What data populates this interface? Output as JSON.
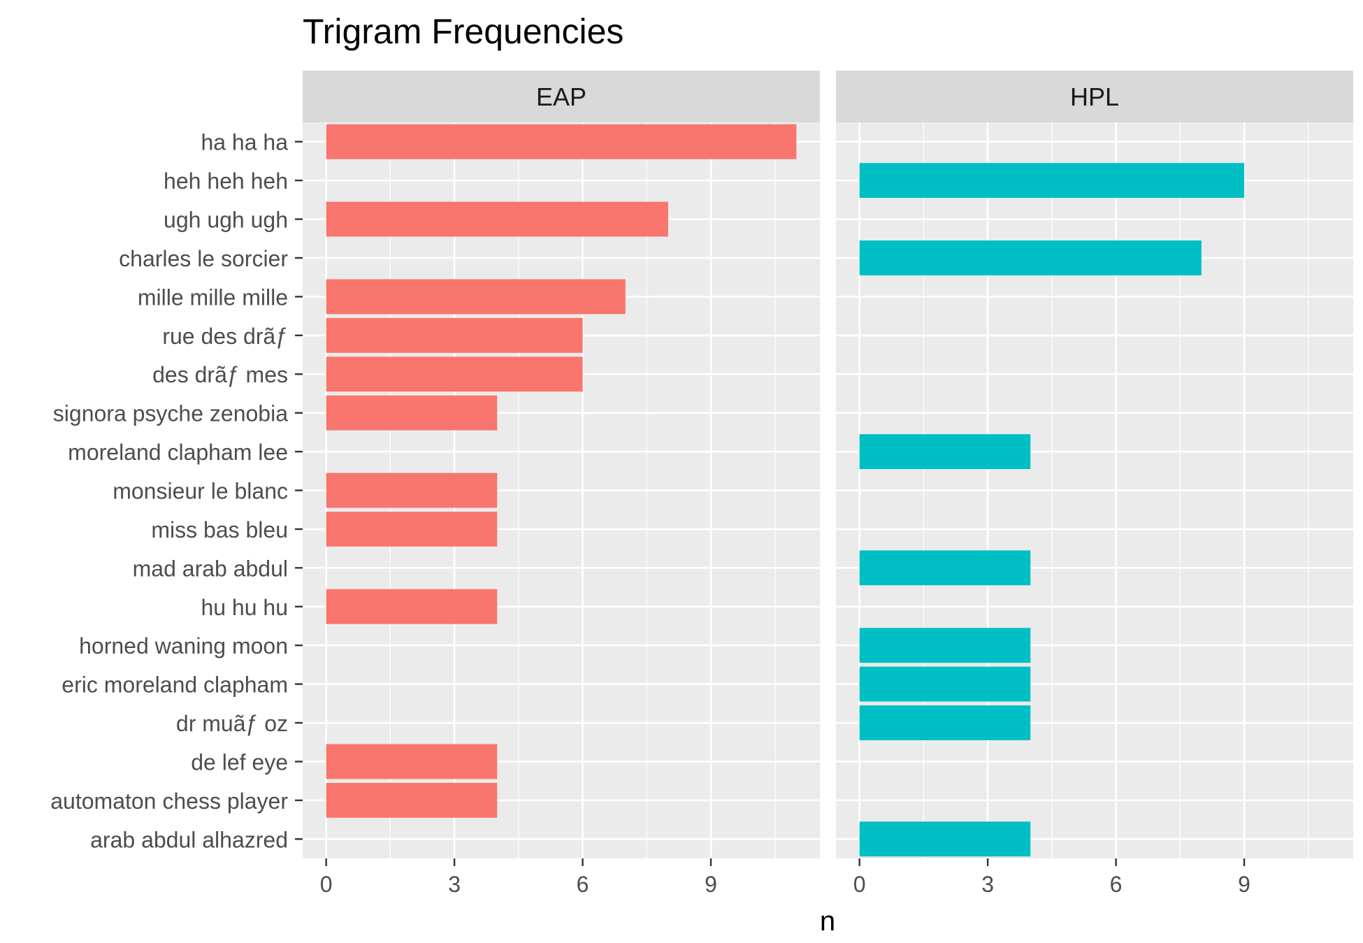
{
  "chart_data": {
    "type": "bar",
    "orientation": "horizontal",
    "title": "Trigram Frequencies",
    "xlabel": "n",
    "ylabel": "",
    "xlim": [
      -0.55,
      11.55
    ],
    "x_ticks": [
      0,
      3,
      6,
      9
    ],
    "grid": true,
    "legend": "none",
    "categories": [
      "ha ha ha",
      "heh heh heh",
      "ugh ugh ugh",
      "charles le sorcier",
      "mille mille mille",
      "rue des drãƒ",
      "des drãƒ mes",
      "signora psyche zenobia",
      "moreland clapham lee",
      "monsieur le blanc",
      "miss bas bleu",
      "mad arab abdul",
      "hu hu hu",
      "horned waning moon",
      "eric moreland clapham",
      "dr muãƒ oz",
      "de lef eye",
      "automaton chess player",
      "arab abdul alhazred"
    ],
    "panels": [
      {
        "name": "EAP",
        "color": "#F8766D",
        "values": [
          11,
          0,
          8,
          0,
          7,
          6,
          6,
          4,
          0,
          4,
          4,
          0,
          4,
          0,
          0,
          0,
          4,
          4,
          0
        ]
      },
      {
        "name": "HPL",
        "color": "#00BFC4",
        "values": [
          0,
          9,
          0,
          8,
          0,
          0,
          0,
          0,
          4,
          0,
          0,
          4,
          0,
          4,
          4,
          4,
          0,
          0,
          4
        ]
      }
    ]
  }
}
